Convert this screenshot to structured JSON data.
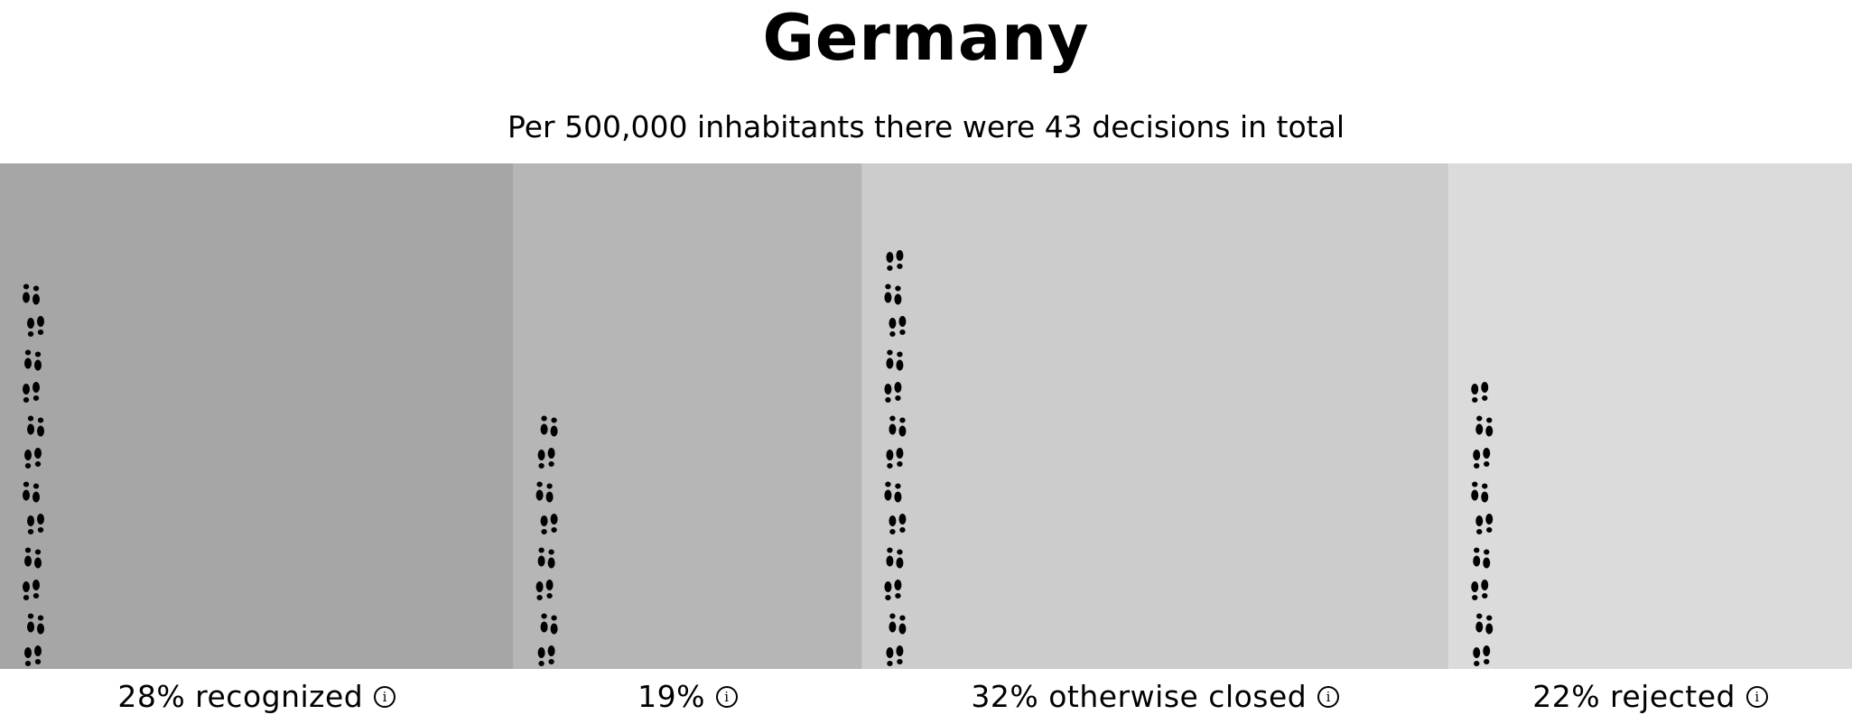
{
  "title": "Germany",
  "subtitle": "Per 500,000 inhabitants there were 43 decisions in total",
  "colors": {
    "recognized": "#a6a6a6",
    "other": "#b6b6b6",
    "otherwise_closed": "#cccccc",
    "rejected": "#dbdbdb",
    "footprint": "#000000"
  },
  "info_icon": "info-circle-icon",
  "footprint_icon": "footprints-icon",
  "chart_data": {
    "type": "bar",
    "total_decisions": 43,
    "categories": [
      "28% recognized",
      "19%",
      "32% otherwise closed",
      "22% rejected"
    ],
    "percent": [
      28,
      19,
      32,
      22
    ],
    "footprint_counts": [
      12,
      8,
      13,
      9
    ]
  }
}
